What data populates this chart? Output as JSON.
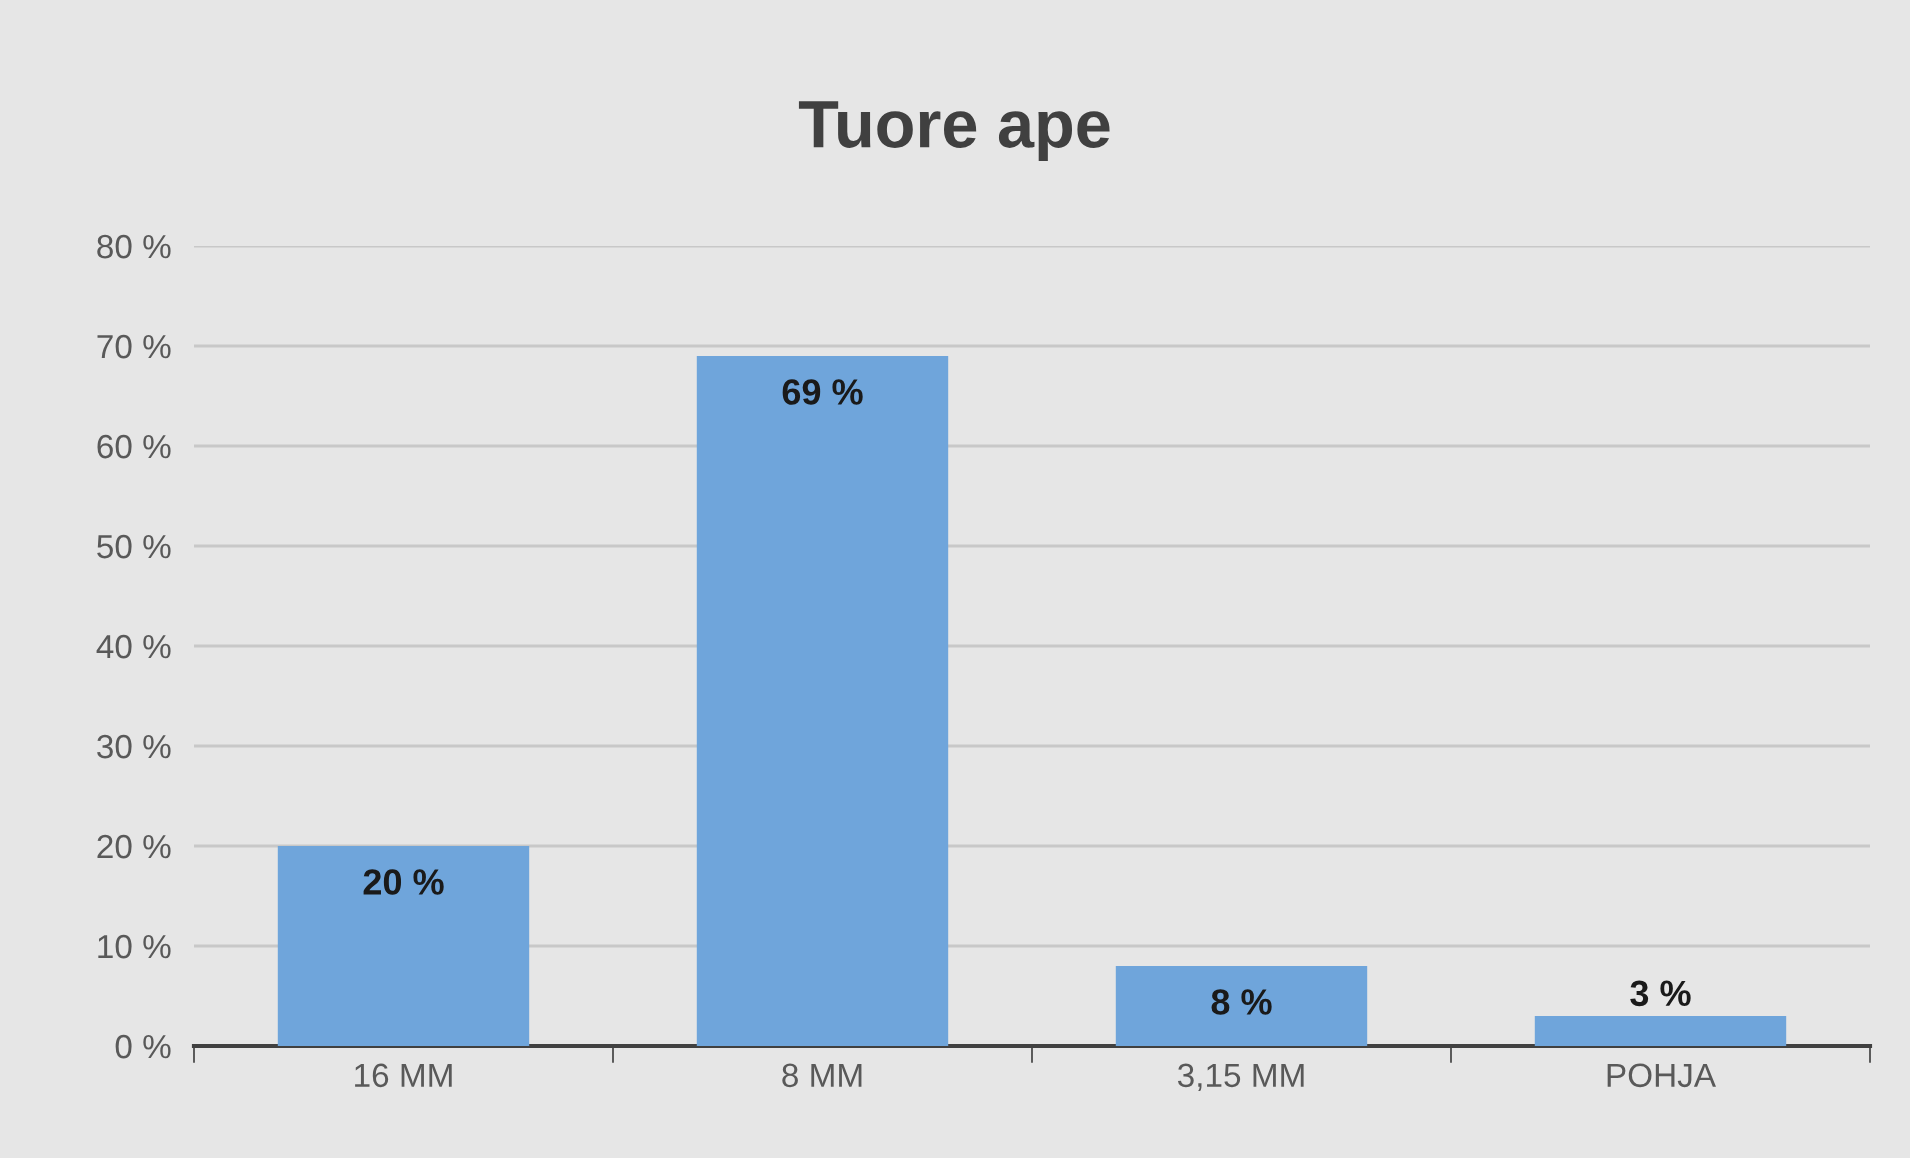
{
  "chart_data": {
    "type": "bar",
    "title": "Tuore ape",
    "categories": [
      "16 MM",
      "8 MM",
      "3,15 MM",
      "POHJA"
    ],
    "values": [
      20,
      69,
      8,
      3
    ],
    "value_labels": [
      "20 %",
      "69 %",
      "8 %",
      "3 %"
    ],
    "color": "#6fa5db",
    "ylim": [
      0,
      80
    ],
    "yticks": [
      {
        "value": 0,
        "label": "0 %"
      },
      {
        "value": 10,
        "label": "10 %"
      },
      {
        "value": 20,
        "label": "20 %"
      },
      {
        "value": 30,
        "label": "30 %"
      },
      {
        "value": 40,
        "label": "40 %"
      },
      {
        "value": 50,
        "label": "50 %"
      },
      {
        "value": 60,
        "label": "60 %"
      },
      {
        "value": 70,
        "label": "70 %"
      },
      {
        "value": 80,
        "label": "80 %"
      }
    ],
    "grid": "y"
  }
}
